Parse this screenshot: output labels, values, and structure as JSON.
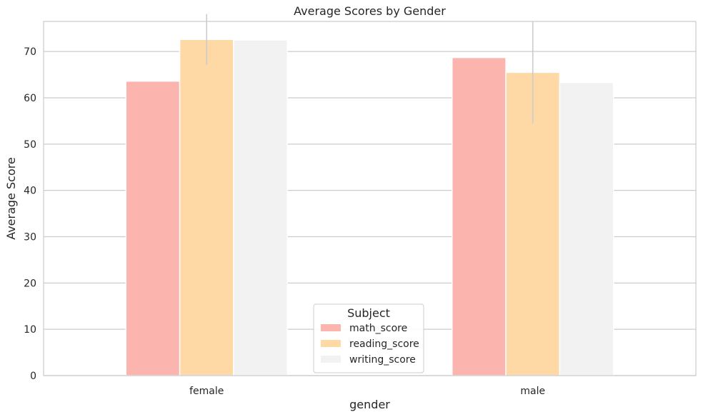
{
  "chart_data": {
    "type": "bar",
    "title": "Average Scores by Gender",
    "xlabel": "gender",
    "ylabel": "Average Score",
    "categories": [
      "female",
      "male"
    ],
    "series": [
      {
        "name": "math_score",
        "values": [
          63.6,
          68.7
        ],
        "color": "#FBB4AE",
        "error": [
          0,
          0
        ]
      },
      {
        "name": "reading_score",
        "values": [
          72.6,
          65.5
        ],
        "color": "#FED9A6",
        "error": [
          5.5,
          11.0
        ]
      },
      {
        "name": "writing_score",
        "values": [
          72.5,
          63.3
        ],
        "color": "#F2F2F2",
        "error": [
          0,
          0
        ]
      }
    ],
    "ylim": [
      0,
      76.5
    ],
    "yticks": [
      0,
      10,
      20,
      30,
      40,
      50,
      60,
      70
    ],
    "grid": true,
    "legend": {
      "title": "Subject",
      "position": "bottom-center"
    }
  }
}
